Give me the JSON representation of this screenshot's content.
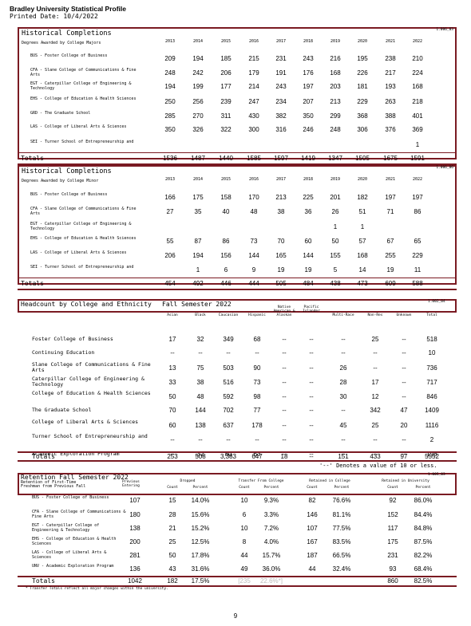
{
  "header": {
    "title": "Bradley University Statistical Profile",
    "printed": "Printed Date:  10/4/2022"
  },
  "majors": {
    "title": "Historical Completions",
    "code": "1.006_03",
    "subtitle": "Degrees Awarded by College Majors",
    "years": [
      "2013",
      "2014",
      "2015",
      "2016",
      "2017",
      "2018",
      "2019",
      "2020",
      "2021",
      "2022"
    ],
    "rows": [
      {
        "label": "BUS - Foster College of Business",
        "values": [
          "209",
          "194",
          "185",
          "215",
          "231",
          "243",
          "216",
          "195",
          "238",
          "210"
        ]
      },
      {
        "label": "CFA - Slane College of Communications & Fine Arts",
        "values": [
          "248",
          "242",
          "206",
          "179",
          "191",
          "176",
          "168",
          "226",
          "217",
          "224"
        ]
      },
      {
        "label": "EGT - Caterpillar College of Engineering & Technology",
        "values": [
          "194",
          "199",
          "177",
          "214",
          "243",
          "197",
          "203",
          "181",
          "193",
          "168"
        ]
      },
      {
        "label": "EHS - College of Education & Health Sciences",
        "values": [
          "250",
          "256",
          "239",
          "247",
          "234",
          "207",
          "213",
          "229",
          "263",
          "218"
        ]
      },
      {
        "label": "GRD - The Graduate School",
        "values": [
          "285",
          "270",
          "311",
          "430",
          "382",
          "350",
          "299",
          "368",
          "388",
          "401"
        ]
      },
      {
        "label": "LAS - College of Liberal Arts & Sciences",
        "values": [
          "350",
          "326",
          "322",
          "300",
          "316",
          "246",
          "248",
          "306",
          "376",
          "369"
        ]
      },
      {
        "label": "SEI - Turner School of Entrepreneurship and",
        "values": [
          "",
          "",
          "",
          "",
          "",
          "",
          "",
          "",
          "",
          "1"
        ]
      }
    ],
    "totals_label": "Totals",
    "totals": [
      "1536",
      "1487",
      "1440",
      "1585",
      "1597",
      "1419",
      "1347",
      "1505",
      "1675",
      "1591"
    ]
  },
  "minors": {
    "title": "Historical Completions",
    "code": "1.006_06",
    "subtitle": "Degrees Awarded by College Minor",
    "years": [
      "2013",
      "2014",
      "2015",
      "2016",
      "2017",
      "2018",
      "2019",
      "2020",
      "2021",
      "2022"
    ],
    "rows": [
      {
        "label": "BUS - Foster College of Business",
        "values": [
          "166",
          "175",
          "158",
          "170",
          "213",
          "225",
          "201",
          "182",
          "197",
          "197"
        ]
      },
      {
        "label": "CFA - Slane College of Communications & Fine Arts",
        "values": [
          "27",
          "35",
          "40",
          "48",
          "38",
          "36",
          "26",
          "51",
          "71",
          "86"
        ]
      },
      {
        "label": "EGT - Caterpillar College of Engineering & Technology",
        "values": [
          "",
          "",
          "",
          "",
          "",
          "",
          "1",
          "1",
          "",
          ""
        ]
      },
      {
        "label": "EHS - College of Education & Health Sciences",
        "values": [
          "55",
          "87",
          "86",
          "73",
          "70",
          "60",
          "50",
          "57",
          "67",
          "65"
        ]
      },
      {
        "label": "LAS - College of Liberal Arts & Sciences",
        "values": [
          "206",
          "194",
          "156",
          "144",
          "165",
          "144",
          "155",
          "168",
          "255",
          "229"
        ]
      },
      {
        "label": "SEI - Turner School of Entrepreneurship and",
        "values": [
          "",
          "1",
          "6",
          "9",
          "19",
          "19",
          "5",
          "14",
          "19",
          "11"
        ]
      }
    ],
    "totals_label": "Totals",
    "totals": [
      "454",
      "492",
      "446",
      "444",
      "505",
      "484",
      "438",
      "473",
      "609",
      "588"
    ]
  },
  "ethnicity": {
    "title": "Headcount by College and Ethnicity",
    "semester": "Fall Semester 2022",
    "code": "1.002_04",
    "columns": [
      "Asian",
      "Black",
      "Caucasian",
      "Hispanic",
      "Native American & Alaskan",
      "Pacific Islander",
      "Multi-Race",
      "Non-Res",
      "Unknown",
      "Total"
    ],
    "rows": [
      {
        "label": "Foster College of Business",
        "values": [
          "17",
          "32",
          "349",
          "68",
          "--",
          "--",
          "--",
          "25",
          "--",
          "518"
        ]
      },
      {
        "label": "Continuing Education",
        "values": [
          "--",
          "--",
          "--",
          "--",
          "--",
          "--",
          "--",
          "--",
          "--",
          "10"
        ]
      },
      {
        "label": "Slane College of Communications & Fine Arts",
        "values": [
          "13",
          "75",
          "503",
          "90",
          "--",
          "--",
          "26",
          "--",
          "--",
          "736"
        ]
      },
      {
        "label": "Caterpillar College of Engineering & Technology",
        "values": [
          "33",
          "38",
          "516",
          "73",
          "--",
          "--",
          "28",
          "17",
          "--",
          "717"
        ]
      },
      {
        "label": "College of Education & Health Sciences",
        "values": [
          "50",
          "48",
          "592",
          "98",
          "--",
          "--",
          "30",
          "12",
          "--",
          "846"
        ]
      },
      {
        "label": "The Graduate School",
        "values": [
          "70",
          "144",
          "702",
          "77",
          "--",
          "--",
          "--",
          "342",
          "47",
          "1409"
        ]
      },
      {
        "label": "College of Liberal Arts & Sciences",
        "values": [
          "60",
          "138",
          "637",
          "178",
          "--",
          "--",
          "45",
          "25",
          "20",
          "1116"
        ]
      },
      {
        "label": "Turner School of Entrepreneurship and",
        "values": [
          "--",
          "--",
          "--",
          "--",
          "--",
          "--",
          "--",
          "--",
          "--",
          "2"
        ]
      },
      {
        "label": "Academic Exploration Program",
        "values": [
          "--",
          "32",
          "80",
          "63",
          "--",
          "--",
          "--",
          "--",
          "--",
          "198"
        ]
      }
    ],
    "totals_label": "Totals",
    "totals": [
      "253",
      "508",
      "3,383",
      "647",
      "18",
      "--",
      "151",
      "433",
      "97",
      "5552"
    ],
    "note": "'--' Denotes a value of 10 or less."
  },
  "retention": {
    "title": "Retention  Fall Semester 2022",
    "code": "1.005_03",
    "subtitle1": "Retention of First-Time",
    "subtitle2": "Freshman from Previous Fall",
    "col_prev": "Previous Entering",
    "groups": [
      "Dropped",
      "Transfer From College",
      "Retained in College",
      "Retained in University"
    ],
    "count_label": "Count",
    "percent_label": "Percent",
    "rows": [
      {
        "label": "BUS - Foster College of Business",
        "prev": "107",
        "values": [
          "15",
          "14.0%",
          "10",
          "9.3%",
          "82",
          "76.6%",
          "92",
          "86.0%"
        ]
      },
      {
        "label": "CFA - Slane College of Communications & Fine Arts",
        "prev": "180",
        "values": [
          "28",
          "15.6%",
          "6",
          "3.3%",
          "146",
          "81.1%",
          "152",
          "84.4%"
        ]
      },
      {
        "label": "EGT - Caterpillar College of Engineering & Technology",
        "prev": "138",
        "values": [
          "21",
          "15.2%",
          "10",
          "7.2%",
          "107",
          "77.5%",
          "117",
          "84.8%"
        ]
      },
      {
        "label": "EHS - College of Education & Health Sciences",
        "prev": "200",
        "values": [
          "25",
          "12.5%",
          "8",
          "4.0%",
          "167",
          "83.5%",
          "175",
          "87.5%"
        ]
      },
      {
        "label": "LAS - College of Liberal Arts & Sciences",
        "prev": "281",
        "values": [
          "50",
          "17.8%",
          "44",
          "15.7%",
          "187",
          "66.5%",
          "231",
          "82.2%"
        ]
      },
      {
        "label": "UNV - Academic Exploration Program",
        "prev": "136",
        "values": [
          "43",
          "31.6%",
          "49",
          "36.0%",
          "44",
          "32.4%",
          "93",
          "68.4%"
        ]
      }
    ],
    "totals_label": "Totals",
    "totals_prev": "1042",
    "totals": [
      "182",
      "17.5%",
      "[235",
      "22.6%*]",
      "",
      "",
      "860",
      "82.5%"
    ],
    "footnote": "* Transfer Totals reflect all major changes within the university."
  },
  "page_number": "9"
}
